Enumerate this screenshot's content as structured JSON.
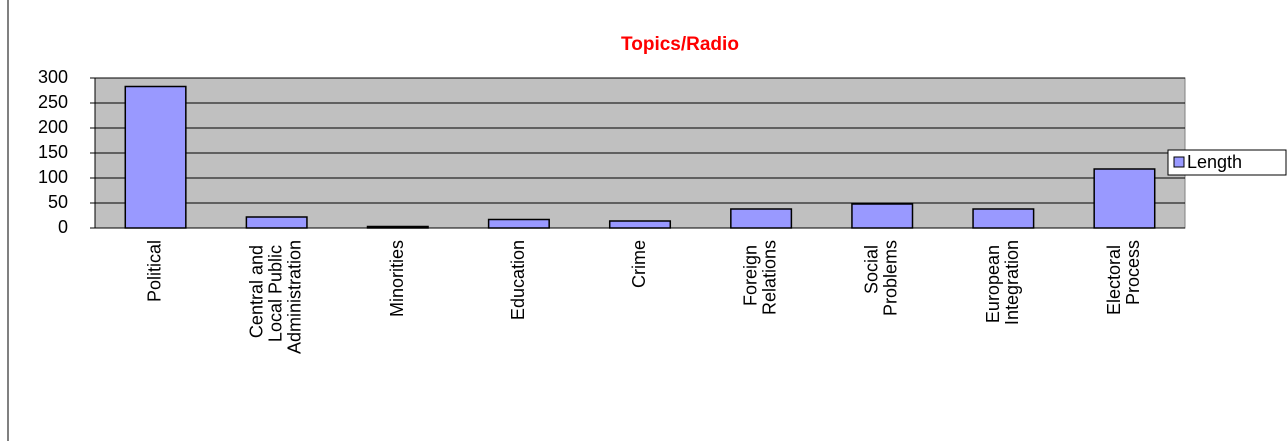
{
  "chart_data": {
    "type": "bar",
    "title": "Topics/Radio",
    "categories": [
      "Political",
      "Central and Local Public Administration",
      "Minorities",
      "Education",
      "Crime",
      "Foreign Relations",
      "Social Problems",
      "European Integration",
      "Electoral Process"
    ],
    "series": [
      {
        "name": "Length",
        "color": "#9999ff",
        "values": [
          283,
          22,
          3,
          17,
          14,
          38,
          48,
          38,
          118
        ]
      }
    ],
    "ylim": [
      0,
      300
    ],
    "yticks": [
      0,
      50,
      100,
      150,
      200,
      250,
      300
    ],
    "grid": true,
    "legend": "right"
  }
}
